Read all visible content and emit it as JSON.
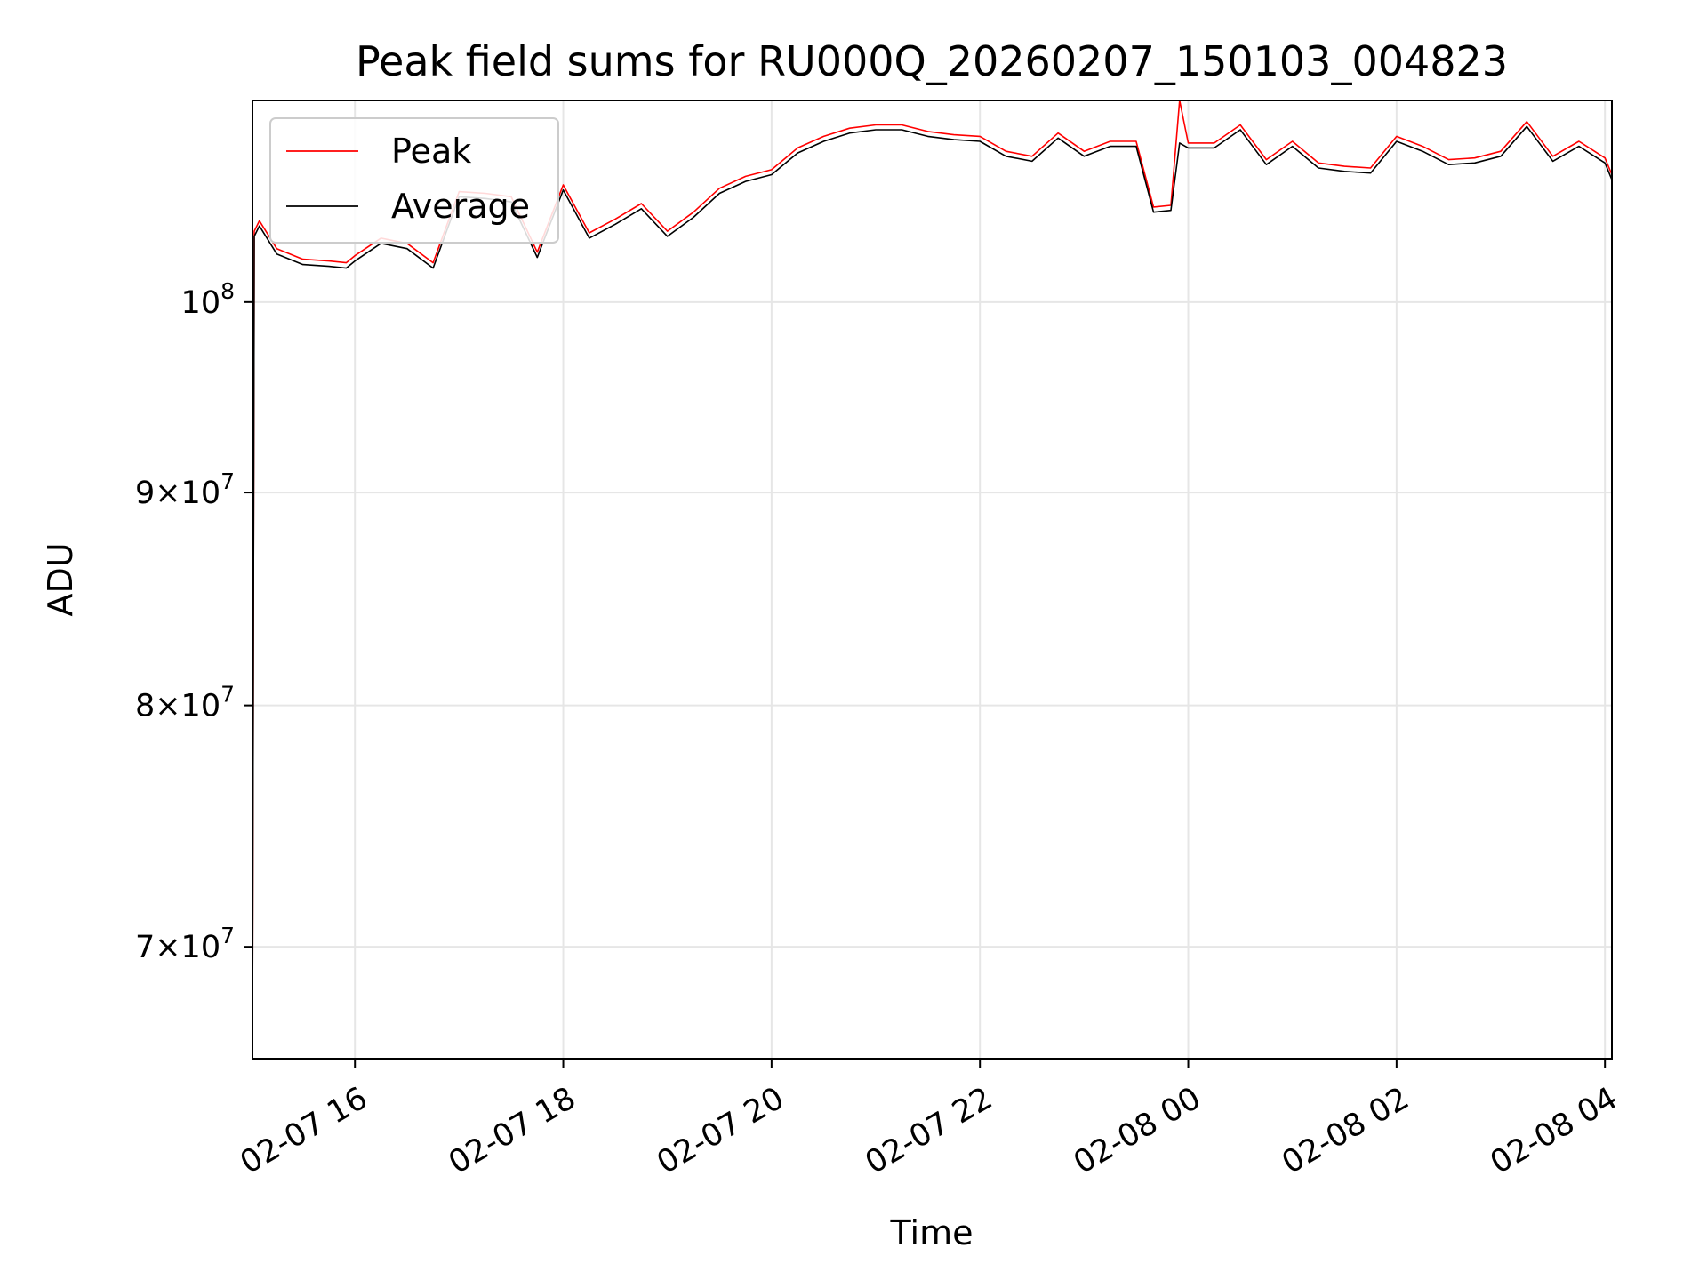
{
  "chart_data": {
    "type": "line",
    "title": "Peak field sums for RU000Q_20260207_150103_004823",
    "xlabel": "Time",
    "ylabel": "ADU",
    "yscale": "log",
    "grid": true,
    "legend_position": "top-left",
    "xlim": [
      "2026-02-07 15:01",
      "2026-02-08 04:04"
    ],
    "ylim": [
      65800000,
      111800000
    ],
    "x_ticks": [
      "02-07 16",
      "02-07 18",
      "02-07 20",
      "02-07 22",
      "02-08 00",
      "02-08 02",
      "02-08 04"
    ],
    "x_tick_values": [
      "2026-02-07 16:00",
      "2026-02-07 18:00",
      "2026-02-07 20:00",
      "2026-02-07 22:00",
      "2026-02-08 00:00",
      "2026-02-08 02:00",
      "2026-02-08 04:00"
    ],
    "y_ticks": [
      {
        "value": 70000000,
        "mantissa": "7",
        "exponent": "7"
      },
      {
        "value": 80000000,
        "mantissa": "8",
        "exponent": "7"
      },
      {
        "value": 90000000,
        "mantissa": "9",
        "exponent": "7"
      },
      {
        "value": 100000000,
        "mantissa": "",
        "exponent": "8"
      }
    ],
    "series": [
      {
        "name": "Peak",
        "color": "#ff0000",
        "points": [
          [
            "2026-02-07 15:01",
            66000000
          ],
          [
            "2026-02-07 15:02",
            104000000
          ],
          [
            "2026-02-07 15:05",
            104600000
          ],
          [
            "2026-02-07 15:15",
            103000000
          ],
          [
            "2026-02-07 15:30",
            102400000
          ],
          [
            "2026-02-07 15:45",
            102300000
          ],
          [
            "2026-02-07 15:55",
            102200000
          ],
          [
            "2026-02-07 16:00",
            102600000
          ],
          [
            "2026-02-07 16:15",
            103600000
          ],
          [
            "2026-02-07 16:30",
            103300000
          ],
          [
            "2026-02-07 16:45",
            102200000
          ],
          [
            "2026-02-07 17:00",
            106300000
          ],
          [
            "2026-02-07 17:15",
            106200000
          ],
          [
            "2026-02-07 17:30",
            106000000
          ],
          [
            "2026-02-07 17:45",
            102800000
          ],
          [
            "2026-02-07 18:00",
            106700000
          ],
          [
            "2026-02-07 18:15",
            103900000
          ],
          [
            "2026-02-07 18:30",
            104700000
          ],
          [
            "2026-02-07 18:45",
            105600000
          ],
          [
            "2026-02-07 19:00",
            104000000
          ],
          [
            "2026-02-07 19:15",
            105100000
          ],
          [
            "2026-02-07 19:30",
            106500000
          ],
          [
            "2026-02-07 19:45",
            107200000
          ],
          [
            "2026-02-07 20:00",
            107600000
          ],
          [
            "2026-02-07 20:15",
            108900000
          ],
          [
            "2026-02-07 20:30",
            109600000
          ],
          [
            "2026-02-07 20:45",
            110100000
          ],
          [
            "2026-02-07 21:00",
            110300000
          ],
          [
            "2026-02-07 21:15",
            110300000
          ],
          [
            "2026-02-07 21:30",
            109900000
          ],
          [
            "2026-02-07 21:45",
            109700000
          ],
          [
            "2026-02-07 22:00",
            109600000
          ],
          [
            "2026-02-07 22:15",
            108700000
          ],
          [
            "2026-02-07 22:30",
            108400000
          ],
          [
            "2026-02-07 22:45",
            109800000
          ],
          [
            "2026-02-07 23:00",
            108700000
          ],
          [
            "2026-02-07 23:15",
            109300000
          ],
          [
            "2026-02-07 23:30",
            109300000
          ],
          [
            "2026-02-07 23:40",
            105400000
          ],
          [
            "2026-02-07 23:50",
            105500000
          ],
          [
            "2026-02-07 23:55",
            111800000
          ],
          [
            "2026-02-08 00:00",
            109200000
          ],
          [
            "2026-02-08 00:15",
            109200000
          ],
          [
            "2026-02-08 00:30",
            110300000
          ],
          [
            "2026-02-08 00:45",
            108200000
          ],
          [
            "2026-02-08 01:00",
            109300000
          ],
          [
            "2026-02-08 01:15",
            108000000
          ],
          [
            "2026-02-08 01:30",
            107800000
          ],
          [
            "2026-02-08 01:45",
            107700000
          ],
          [
            "2026-02-08 02:00",
            109600000
          ],
          [
            "2026-02-08 02:15",
            109000000
          ],
          [
            "2026-02-08 02:30",
            108200000
          ],
          [
            "2026-02-08 02:45",
            108300000
          ],
          [
            "2026-02-08 03:00",
            108700000
          ],
          [
            "2026-02-08 03:15",
            110500000
          ],
          [
            "2026-02-08 03:30",
            108400000
          ],
          [
            "2026-02-08 03:45",
            109300000
          ],
          [
            "2026-02-08 04:00",
            108300000
          ],
          [
            "2026-02-08 04:04",
            107300000
          ]
        ]
      },
      {
        "name": "Average",
        "color": "#000000",
        "points": [
          [
            "2026-02-07 15:01",
            66000000
          ],
          [
            "2026-02-07 15:02",
            103700000
          ],
          [
            "2026-02-07 15:05",
            104300000
          ],
          [
            "2026-02-07 15:15",
            102700000
          ],
          [
            "2026-02-07 15:30",
            102100000
          ],
          [
            "2026-02-07 15:45",
            102000000
          ],
          [
            "2026-02-07 15:55",
            101900000
          ],
          [
            "2026-02-07 16:00",
            102300000
          ],
          [
            "2026-02-07 16:15",
            103300000
          ],
          [
            "2026-02-07 16:30",
            103000000
          ],
          [
            "2026-02-07 16:45",
            101900000
          ],
          [
            "2026-02-07 17:00",
            106000000
          ],
          [
            "2026-02-07 17:15",
            105900000
          ],
          [
            "2026-02-07 17:30",
            105700000
          ],
          [
            "2026-02-07 17:45",
            102500000
          ],
          [
            "2026-02-07 18:00",
            106400000
          ],
          [
            "2026-02-07 18:15",
            103600000
          ],
          [
            "2026-02-07 18:30",
            104400000
          ],
          [
            "2026-02-07 18:45",
            105300000
          ],
          [
            "2026-02-07 19:00",
            103700000
          ],
          [
            "2026-02-07 19:15",
            104800000
          ],
          [
            "2026-02-07 19:30",
            106200000
          ],
          [
            "2026-02-07 19:45",
            106900000
          ],
          [
            "2026-02-07 20:00",
            107300000
          ],
          [
            "2026-02-07 20:15",
            108600000
          ],
          [
            "2026-02-07 20:30",
            109300000
          ],
          [
            "2026-02-07 20:45",
            109800000
          ],
          [
            "2026-02-07 21:00",
            110000000
          ],
          [
            "2026-02-07 21:15",
            110000000
          ],
          [
            "2026-02-07 21:30",
            109600000
          ],
          [
            "2026-02-07 21:45",
            109400000
          ],
          [
            "2026-02-07 22:00",
            109300000
          ],
          [
            "2026-02-07 22:15",
            108400000
          ],
          [
            "2026-02-07 22:30",
            108100000
          ],
          [
            "2026-02-07 22:45",
            109500000
          ],
          [
            "2026-02-07 23:00",
            108400000
          ],
          [
            "2026-02-07 23:15",
            109000000
          ],
          [
            "2026-02-07 23:30",
            109000000
          ],
          [
            "2026-02-07 23:40",
            105100000
          ],
          [
            "2026-02-07 23:50",
            105200000
          ],
          [
            "2026-02-07 23:55",
            109200000
          ],
          [
            "2026-02-08 00:00",
            108900000
          ],
          [
            "2026-02-08 00:15",
            108900000
          ],
          [
            "2026-02-08 00:30",
            110000000
          ],
          [
            "2026-02-08 00:45",
            107900000
          ],
          [
            "2026-02-08 01:00",
            109000000
          ],
          [
            "2026-02-08 01:15",
            107700000
          ],
          [
            "2026-02-08 01:30",
            107500000
          ],
          [
            "2026-02-08 01:45",
            107400000
          ],
          [
            "2026-02-08 02:00",
            109300000
          ],
          [
            "2026-02-08 02:15",
            108700000
          ],
          [
            "2026-02-08 02:30",
            107900000
          ],
          [
            "2026-02-08 02:45",
            108000000
          ],
          [
            "2026-02-08 03:00",
            108400000
          ],
          [
            "2026-02-08 03:15",
            110200000
          ],
          [
            "2026-02-08 03:30",
            108100000
          ],
          [
            "2026-02-08 03:45",
            109000000
          ],
          [
            "2026-02-08 04:00",
            108000000
          ],
          [
            "2026-02-08 04:04",
            107000000
          ]
        ]
      }
    ]
  }
}
